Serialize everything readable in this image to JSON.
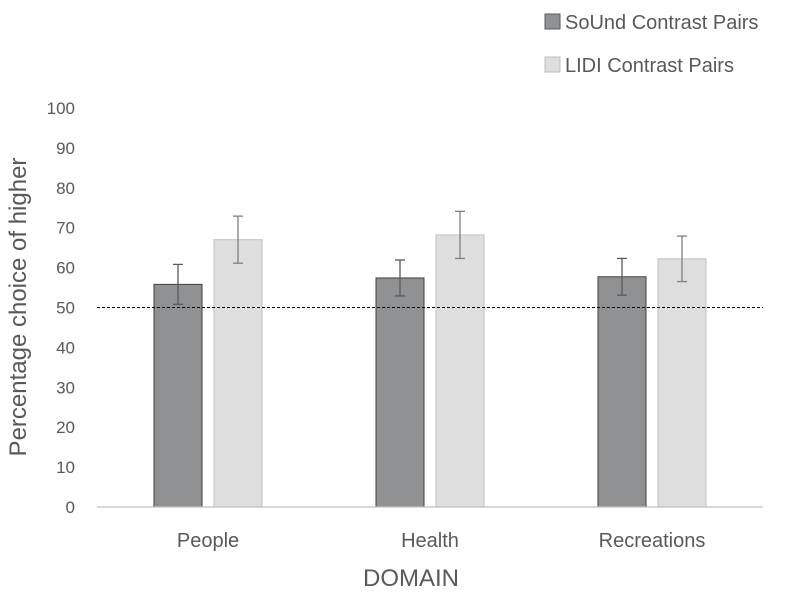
{
  "chart_data": {
    "type": "bar",
    "title": "",
    "xlabel": "DOMAIN",
    "ylabel": "Percentage choice of higher",
    "ylim": [
      0,
      100
    ],
    "yticks": [
      0,
      10,
      20,
      30,
      40,
      50,
      60,
      70,
      80,
      90,
      100
    ],
    "categories": [
      "People",
      "Health",
      "Recreations"
    ],
    "series": [
      {
        "name": "SoUnd Contrast Pairs",
        "color": "#909193",
        "values": [
          55.8,
          57.4,
          57.7
        ],
        "error": [
          5.0,
          4.5,
          4.6
        ]
      },
      {
        "name": "LIDI Contrast Pairs",
        "color": "#dededf",
        "values": [
          67.0,
          68.2,
          62.2
        ],
        "error": [
          5.9,
          5.9,
          5.7
        ]
      }
    ],
    "reference_line": {
      "y": 50,
      "style": "dashed"
    },
    "grid": false,
    "legend_position": "top-right"
  }
}
